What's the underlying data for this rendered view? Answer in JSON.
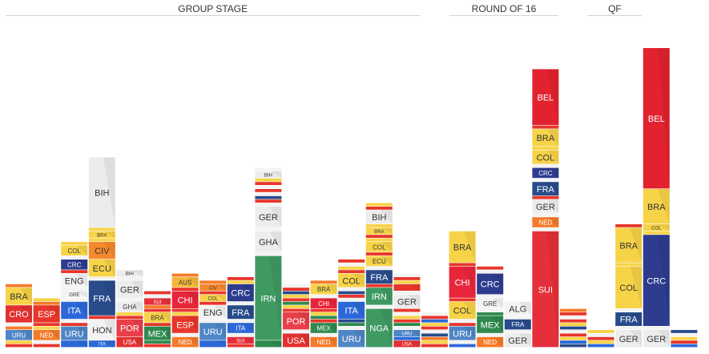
{
  "chart_data": {
    "type": "bar",
    "stacked": true,
    "value_unit": "goals",
    "stages": [
      {
        "label": "GROUP STAGE",
        "first_col": 0,
        "last_col": 14
      },
      {
        "label": "ROUND OF 16",
        "first_col": 16,
        "last_col": 19
      },
      {
        "label": "QF",
        "first_col": 21,
        "last_col": 22
      }
    ],
    "colors": {
      "BRA": "#f7d348",
      "CRO": "#e33131",
      "ESP": "#e8362b",
      "NED": "#f47b2a",
      "URU": "#4f86c6",
      "CRC": "#2d3c8e",
      "ENG": "#f3f3f3",
      "GRE": "#f3f3f3",
      "ITA": "#2c68d8",
      "COL": "#f7d348",
      "FRA": "#284b8a",
      "HON": "#f3f3f3",
      "BIH": "#ececec",
      "CIV": "#f58a2d",
      "ECU": "#f7d348",
      "GER": "#ededed",
      "GHA": "#ededed",
      "POR": "#e8404a",
      "USA": "#e33131",
      "MEX": "#2e8a4e",
      "AUS": "#f5b83a",
      "CHI": "#e8263b",
      "SUI": "#e52f3a",
      "IRN": "#3f9a62",
      "NGA": "#3f9a62",
      "ALG": "#f3f3f3",
      "BEL": "#e3222f",
      "KOR": "#f3f3f3",
      "ARG": "#9ecbea",
      "JPN": "#f3f3f3",
      "RUS": "#f3f3f3",
      "CMR": "#2f8f4a",
      "other1": "#e8362b",
      "other2": "#f7d348",
      "other3": "#f47b2a",
      "other4": "#2c68d8",
      "other5": "#f3f3f3",
      "other6": "#2e8a4e",
      "other7": "#284b8a",
      "dark_text": "#333333",
      "light_text": "#ffffff"
    },
    "columns": [
      {
        "segments": [
          [
            "other1",
            1
          ],
          [
            "other2",
            1
          ],
          [
            "URU",
            3
          ],
          [
            "NED",
            1
          ],
          [
            "other5",
            1
          ],
          [
            "CRO",
            5
          ],
          [
            "BRA",
            5
          ],
          [
            "other3",
            1
          ]
        ]
      },
      {
        "segments": [
          [
            "other1",
            1
          ],
          [
            "other5",
            1
          ],
          [
            "NED",
            3
          ],
          [
            "other2",
            1
          ],
          [
            "other1",
            1
          ],
          [
            "ESP",
            5
          ],
          [
            "other3",
            1
          ],
          [
            "other2",
            1
          ]
        ]
      },
      {
        "segments": [
          [
            "other4",
            2
          ],
          [
            "URU",
            4
          ],
          [
            "other1",
            1
          ],
          [
            "other5",
            1
          ],
          [
            "ITA",
            5
          ],
          [
            "other5",
            1
          ],
          [
            "GRE",
            2
          ],
          [
            "other5",
            1
          ],
          [
            "ENG",
            4
          ],
          [
            "other1",
            1
          ],
          [
            "CRC",
            3
          ],
          [
            "other5",
            1
          ],
          [
            "COL",
            3
          ],
          [
            "other2",
            1
          ]
        ]
      },
      {
        "segments": [
          [
            "ITA",
            2
          ],
          [
            "HON",
            6
          ],
          [
            "other1",
            1
          ],
          [
            "FRA",
            10
          ],
          [
            "other5",
            1
          ],
          [
            "ECU",
            5
          ],
          [
            "CIV",
            5
          ],
          [
            "other2",
            1
          ],
          [
            "BRA",
            2
          ],
          [
            "other2",
            1
          ],
          [
            "BIH",
            20
          ]
        ]
      },
      {
        "segments": [
          [
            "USA",
            3
          ],
          [
            "POR",
            5
          ],
          [
            "other1",
            1
          ],
          [
            "other2",
            1
          ],
          [
            "GHA",
            3
          ],
          [
            "other5",
            1
          ],
          [
            "GER",
            5
          ],
          [
            "other5",
            1
          ],
          [
            "BIH",
            2
          ]
        ]
      },
      {
        "segments": [
          [
            "other1",
            1
          ],
          [
            "other6",
            1
          ],
          [
            "MEX",
            4
          ],
          [
            "other1",
            1
          ],
          [
            "BRA",
            3
          ],
          [
            "other1",
            1
          ],
          [
            "other3",
            1
          ],
          [
            "SUI",
            2
          ],
          [
            "other5",
            1
          ],
          [
            "other1",
            1
          ]
        ]
      },
      {
        "segments": [
          [
            "NED",
            3
          ],
          [
            "other5",
            1
          ],
          [
            "ESP",
            5
          ],
          [
            "other2",
            1
          ],
          [
            "other1",
            1
          ],
          [
            "CHI",
            5
          ],
          [
            "other1",
            1
          ],
          [
            "AUS",
            3
          ],
          [
            "other3",
            1
          ]
        ]
      },
      {
        "segments": [
          [
            "other4",
            2
          ],
          [
            "URU",
            5
          ],
          [
            "other5",
            1
          ],
          [
            "ENG",
            4
          ],
          [
            "other1",
            1
          ],
          [
            "COL",
            2
          ],
          [
            "other1",
            1
          ],
          [
            "CIV",
            2
          ],
          [
            "other3",
            1
          ]
        ]
      },
      {
        "segments": [
          [
            "other1",
            1
          ],
          [
            "SUI",
            2
          ],
          [
            "other5",
            1
          ],
          [
            "ITA",
            3
          ],
          [
            "other5",
            1
          ],
          [
            "FRA",
            4
          ],
          [
            "other5",
            1
          ],
          [
            "CRC",
            5
          ],
          [
            "other2",
            1
          ],
          [
            "other1",
            1
          ]
        ]
      },
      {
        "segments": [
          [
            "other6",
            2
          ],
          [
            "IRN",
            24
          ],
          [
            "other5",
            1
          ],
          [
            "GHA",
            6
          ],
          [
            "other5",
            1
          ],
          [
            "GER",
            6
          ],
          [
            "other5",
            1
          ],
          [
            "other1",
            1
          ],
          [
            "other7",
            1
          ],
          [
            "other5",
            1
          ],
          [
            "other1",
            1
          ],
          [
            "other5",
            1
          ],
          [
            "other1",
            1
          ],
          [
            "other2",
            1
          ],
          [
            "BIH",
            2
          ],
          [
            "other5",
            1
          ]
        ]
      },
      {
        "segments": [
          [
            "USA",
            4
          ],
          [
            "other5",
            1
          ],
          [
            "POR",
            5
          ],
          [
            "other1",
            1
          ],
          [
            "other2",
            1
          ],
          [
            "other6",
            1
          ],
          [
            "other1",
            1
          ],
          [
            "other2",
            1
          ],
          [
            "other7",
            1
          ],
          [
            "other1",
            1
          ],
          [
            "other5",
            1
          ]
        ]
      },
      {
        "segments": [
          [
            "NED",
            3
          ],
          [
            "other5",
            1
          ],
          [
            "MEX",
            3
          ],
          [
            "other1",
            1
          ],
          [
            "other6",
            1
          ],
          [
            "other2",
            1
          ],
          [
            "other1",
            1
          ],
          [
            "CHI",
            3
          ],
          [
            "other5",
            1
          ],
          [
            "BRA",
            3
          ],
          [
            "other3",
            1
          ]
        ]
      },
      {
        "segments": [
          [
            "URU",
            5
          ],
          [
            "other5",
            1
          ],
          [
            "other6",
            1
          ],
          [
            "other7",
            1
          ],
          [
            "ITA",
            5
          ],
          [
            "other5",
            1
          ],
          [
            "other1",
            1
          ],
          [
            "other7",
            1
          ],
          [
            "other5",
            1
          ],
          [
            "COL",
            4
          ],
          [
            "other1",
            1
          ],
          [
            "other2",
            1
          ],
          [
            "other5",
            1
          ],
          [
            "other1",
            1
          ]
        ]
      },
      {
        "segments": [
          [
            "NGA",
            11
          ],
          [
            "other5",
            1
          ],
          [
            "IRN",
            5
          ],
          [
            "other1",
            1
          ],
          [
            "FRA",
            4
          ],
          [
            "other5",
            1
          ],
          [
            "ECU",
            3
          ],
          [
            "other1",
            1
          ],
          [
            "COL",
            3
          ],
          [
            "other2",
            1
          ],
          [
            "other1",
            1
          ],
          [
            "BRA",
            2
          ],
          [
            "other2",
            1
          ],
          [
            "BIH",
            4
          ],
          [
            "other1",
            1
          ],
          [
            "other2",
            1
          ]
        ]
      },
      {
        "segments": [
          [
            "USA",
            2
          ],
          [
            "other4",
            1
          ],
          [
            "URU",
            2
          ],
          [
            "other5",
            1
          ],
          [
            "other6",
            1
          ],
          [
            "other1",
            1
          ],
          [
            "other2",
            1
          ],
          [
            "other5",
            1
          ],
          [
            "other1",
            1
          ],
          [
            "GER",
            4
          ],
          [
            "other5",
            1
          ],
          [
            "other1",
            2
          ],
          [
            "other2",
            1
          ],
          [
            "other1",
            1
          ],
          [
            "other5",
            1
          ]
        ]
      },
      {
        "segments": [
          [
            "other1",
            1
          ],
          [
            "other2",
            1
          ],
          [
            "other3",
            1
          ],
          [
            "other7",
            1
          ],
          [
            "other5",
            1
          ],
          [
            "other1",
            1
          ],
          [
            "other2",
            1
          ],
          [
            "other4",
            1
          ],
          [
            "other1",
            1
          ],
          [
            "other5",
            1
          ]
        ]
      },
      {
        "segments": [
          [
            "other4",
            1
          ],
          [
            "other5",
            1
          ],
          [
            "URU",
            4
          ],
          [
            "other1",
            1
          ],
          [
            "other5",
            1
          ],
          [
            "COL",
            5
          ],
          [
            "other1",
            1
          ],
          [
            "CHI",
            9
          ],
          [
            "other1",
            1
          ],
          [
            "BRA",
            9
          ]
        ]
      },
      {
        "segments": [
          [
            "NED",
            3
          ],
          [
            "other5",
            1
          ],
          [
            "MEX",
            5
          ],
          [
            "other6",
            1
          ],
          [
            "other5",
            1
          ],
          [
            "GRE",
            3
          ],
          [
            "other5",
            1
          ],
          [
            "CRC",
            6
          ],
          [
            "other5",
            1
          ],
          [
            "other1",
            1
          ]
        ]
      },
      {
        "segments": [
          [
            "GER",
            4
          ],
          [
            "other5",
            1
          ],
          [
            "FRA",
            3
          ],
          [
            "other5",
            1
          ],
          [
            "ALG",
            4
          ]
        ]
      },
      {
        "segments": [
          [
            "SUI",
            33
          ],
          [
            "other5",
            1
          ],
          [
            "NED",
            3
          ],
          [
            "other5",
            1
          ],
          [
            "GER",
            4
          ],
          [
            "other1",
            1
          ],
          [
            "FRA",
            4
          ],
          [
            "other5",
            1
          ],
          [
            "CRC",
            3
          ],
          [
            "other5",
            1
          ],
          [
            "COL",
            4
          ],
          [
            "other2",
            1
          ],
          [
            "BRA",
            5
          ],
          [
            "other1",
            1
          ],
          [
            "BEL",
            16
          ]
        ]
      },
      {
        "segments": [
          [
            "other7",
            1
          ],
          [
            "other4",
            1
          ],
          [
            "other2",
            1
          ],
          [
            "other1",
            1
          ],
          [
            "other5",
            1
          ],
          [
            "other7",
            1
          ],
          [
            "other2",
            1
          ],
          [
            "other1",
            1
          ],
          [
            "other5",
            1
          ],
          [
            "other1",
            1
          ],
          [
            "other3",
            1
          ]
        ]
      },
      {
        "segments": [
          [
            "other4",
            1
          ],
          [
            "other2",
            1
          ],
          [
            "other1",
            1
          ],
          [
            "other5",
            1
          ],
          [
            "other2",
            1
          ]
        ]
      },
      {
        "segments": [
          [
            "GER",
            5
          ],
          [
            "other5",
            1
          ],
          [
            "FRA",
            4
          ],
          [
            "other5",
            1
          ],
          [
            "COL",
            12
          ],
          [
            "other2",
            1
          ],
          [
            "BRA",
            10
          ],
          [
            "other1",
            1
          ]
        ]
      },
      {
        "segments": [
          [
            "GER",
            5
          ],
          [
            "other5",
            1
          ],
          [
            "CRC",
            26
          ],
          [
            "other2",
            1
          ],
          [
            "COL",
            2
          ],
          [
            "BRA",
            10
          ],
          [
            "BEL",
            40
          ]
        ]
      },
      {
        "segments": [
          [
            "other4",
            1
          ],
          [
            "other1",
            1
          ],
          [
            "other2",
            1
          ],
          [
            "other5",
            1
          ],
          [
            "other7",
            1
          ]
        ]
      }
    ]
  }
}
